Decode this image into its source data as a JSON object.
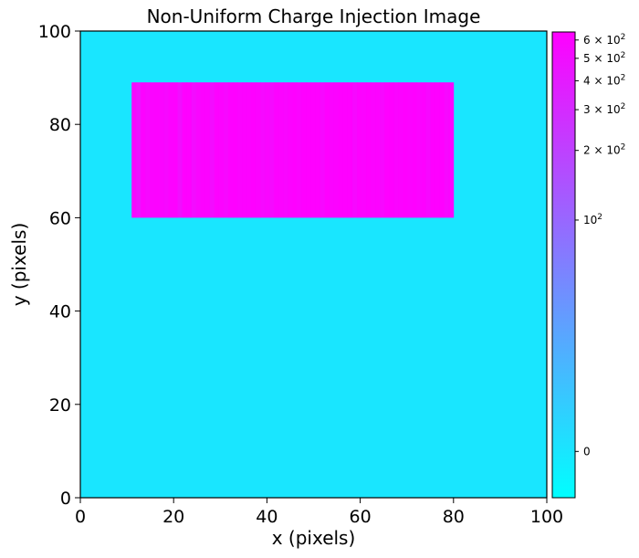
{
  "chart_data": {
    "type": "heatmap",
    "title": "Non-Uniform Charge Injection Image",
    "xlabel": "x (pixels)",
    "ylabel": "y (pixels)",
    "xlim": [
      0,
      100
    ],
    "ylim": [
      0,
      100
    ],
    "xticks": [
      "0",
      "20",
      "40",
      "60",
      "80",
      "100"
    ],
    "yticks": [
      "0",
      "20",
      "40",
      "60",
      "80",
      "100"
    ],
    "background_value": 0,
    "colormap": [
      "#00ffff",
      "#ff00ff"
    ],
    "colorbar": {
      "scale": "symlog",
      "range": [
        -20,
        650
      ],
      "ticks": [
        {
          "value": 0,
          "label": "0"
        },
        {
          "value": 100,
          "label": "10^2"
        },
        {
          "value": 200,
          "label": "2 × 10^2"
        },
        {
          "value": 300,
          "label": "3 × 10^2"
        },
        {
          "value": 400,
          "label": "4 × 10^2"
        },
        {
          "value": 500,
          "label": "5 × 10^2"
        },
        {
          "value": 600,
          "label": "6 × 10^2"
        }
      ]
    },
    "injection_region": {
      "x_range": [
        11,
        80
      ],
      "y_range": [
        60,
        89
      ],
      "column_values": [
        560,
        470,
        620,
        560,
        600,
        610,
        590,
        560,
        610,
        630,
        500,
        640,
        640,
        520,
        580,
        610,
        620,
        520,
        620,
        600,
        560,
        630,
        640,
        600,
        620,
        610,
        640,
        620,
        550,
        580,
        540,
        620,
        600,
        580,
        610,
        640,
        600,
        640,
        640,
        640,
        640,
        560,
        640,
        600,
        620,
        640,
        640,
        640,
        560,
        630,
        620,
        640,
        600,
        620,
        560,
        640,
        640,
        600,
        620,
        640,
        620,
        640,
        600,
        630,
        560,
        640,
        640,
        640,
        560,
        600
      ]
    }
  }
}
